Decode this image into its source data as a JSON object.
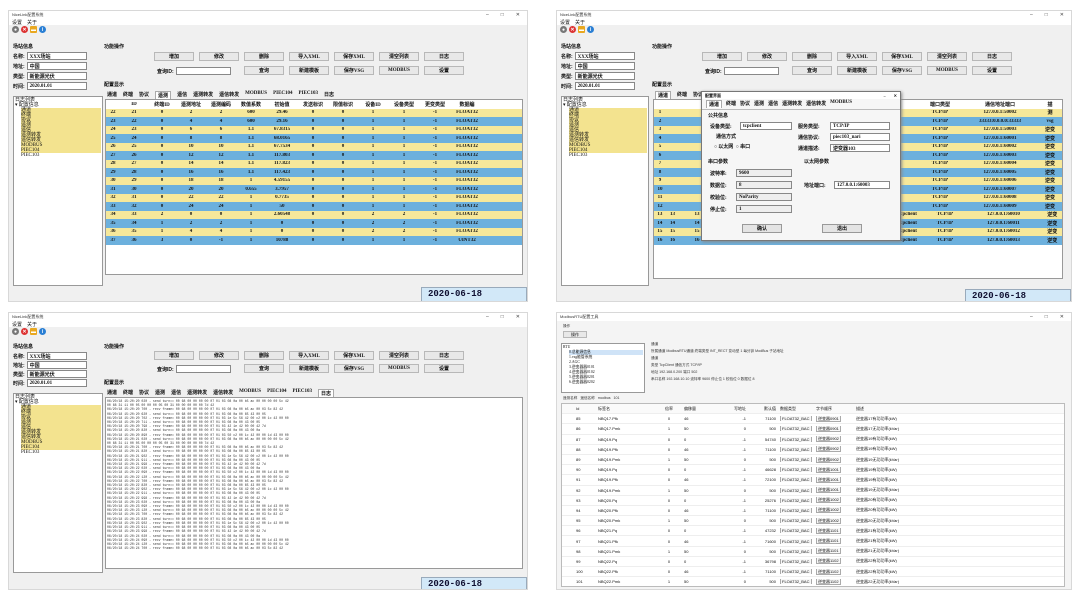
{
  "shared": {
    "window_title": "NiceLink配置系统",
    "menu": [
      "设置",
      "关于"
    ],
    "site_section": "场站信息",
    "fields": {
      "name_label": "名称:",
      "name_value": "XXX场站",
      "addr_label": "地址:",
      "addr_value": "中国",
      "type_label": "类型:",
      "type_value": "新能源光伏",
      "time_label": "时间:",
      "time_value": "2020.01.01"
    },
    "ops_section": "功能操作",
    "buttons_row1": [
      "增加",
      "修改",
      "删除",
      "导入XML",
      "保存XML",
      "清空列表",
      "日志"
    ],
    "query_label": "查询ID:",
    "buttons_row2": [
      "查询",
      "新建模板",
      "保存VSG",
      "MODBUS",
      "设置"
    ],
    "config_label": "配置显示",
    "tabs": [
      "通道",
      "终端",
      "协议",
      "遥测",
      "遥信",
      "遥测转发",
      "遥信转发",
      "MODBUS",
      "PIEC104",
      "PIEC103",
      "日志"
    ],
    "tree_title": "日志列表",
    "tree_root": "配置信息",
    "tree_items": [
      "通道",
      "终端",
      "协议",
      "遥测",
      "遥信",
      "遥测转发",
      "遥信转发",
      "MODBUS",
      "PIEC104",
      "PIEC103"
    ],
    "window_controls": [
      "–",
      "□",
      "✕"
    ],
    "icons": [
      "red-circle-icon",
      "close-icon",
      "folder-icon",
      "info-icon"
    ]
  },
  "win1": {
    "headers": [
      "",
      "ID",
      "终端ID",
      "遥测地址",
      "遥测编码",
      "数值系数",
      "初始值",
      "发送标识",
      "限值标识",
      "设备ID",
      "设备类型",
      "更变类型",
      "数据编"
    ],
    "rows": [
      [
        "22",
        "21",
        "0",
        "2",
        "2",
        "600",
        "29.46",
        "0",
        "0",
        "1",
        "1",
        "-1",
        "FLOAT32"
      ],
      [
        "23",
        "22",
        "0",
        "4",
        "4",
        "600",
        "29.16",
        "0",
        "0",
        "1",
        "1",
        "-1",
        "FLOAT32"
      ],
      [
        "24",
        "23",
        "0",
        "6",
        "6",
        "1.1",
        "67.8315",
        "0",
        "0",
        "1",
        "1",
        "-1",
        "FLOAT32"
      ],
      [
        "25",
        "24",
        "0",
        "8",
        "8",
        "1.1",
        "68.0165",
        "0",
        "0",
        "1",
        "1",
        "-1",
        "FLOAT32"
      ],
      [
        "26",
        "25",
        "0",
        "10",
        "10",
        "1.1",
        "67.7534",
        "0",
        "0",
        "1",
        "1",
        "-1",
        "FLOAT32"
      ],
      [
        "27",
        "26",
        "0",
        "12",
        "12",
        "1.1",
        "117.803",
        "0",
        "0",
        "1",
        "1",
        "-1",
        "FLOAT32"
      ],
      [
        "28",
        "27",
        "0",
        "14",
        "14",
        "1.1",
        "117.823",
        "0",
        "0",
        "1",
        "1",
        "-1",
        "FLOAT32"
      ],
      [
        "29",
        "28",
        "0",
        "16",
        "16",
        "1.1",
        "117.423",
        "0",
        "0",
        "1",
        "1",
        "-1",
        "FLOAT32"
      ],
      [
        "30",
        "29",
        "0",
        "18",
        "18",
        "1",
        "4.59155",
        "0",
        "0",
        "1",
        "1",
        "-1",
        "FLOAT32"
      ],
      [
        "31",
        "30",
        "0",
        "20",
        "20",
        "0.655",
        "3.7957",
        "0",
        "0",
        "1",
        "1",
        "-1",
        "FLOAT32"
      ],
      [
        "32",
        "31",
        "0",
        "22",
        "22",
        "1",
        "0.7735",
        "0",
        "0",
        "1",
        "1",
        "-1",
        "FLOAT32"
      ],
      [
        "33",
        "32",
        "0",
        "24",
        "24",
        "1",
        "50",
        "0",
        "0",
        "1",
        "1",
        "-1",
        "FLOAT32"
      ],
      [
        "34",
        "33",
        "2",
        "0",
        "0",
        "1",
        "2.60548",
        "0",
        "0",
        "2",
        "2",
        "-1",
        "FLOAT32"
      ],
      [
        "35",
        "34",
        "1",
        "2",
        "2",
        "1",
        "0",
        "0",
        "0",
        "2",
        "2",
        "-1",
        "FLOAT32"
      ],
      [
        "36",
        "35",
        "1",
        "4",
        "4",
        "1",
        "0",
        "0",
        "0",
        "2",
        "2",
        "-1",
        "FLOAT32"
      ],
      [
        "37",
        "36",
        "3",
        "0",
        "-1",
        "1",
        "10788",
        "0",
        "0",
        "1",
        "1",
        "-1",
        "UINT32"
      ]
    ],
    "status": "2020-06-18 14:52:20/周四"
  },
  "win2": {
    "dialog_title": "配置界面",
    "dialog_tabs": [
      "通道",
      "终端",
      "协议",
      "遥测",
      "遥信",
      "遥测转发",
      "遥信转发",
      "MODBUS"
    ],
    "common_info": "公共信息",
    "device_type_label": "设备类型:",
    "device_type_value": "tcpclient",
    "server_type_label": "服务类型:",
    "server_type_value": "TCP/IP",
    "comm_mode_label": "通信方式",
    "comm_opt1": "以太网",
    "comm_opt2": "串口",
    "proto_label": "通信协议:",
    "proto_value": "piec103_nari",
    "desc_label": "通道描述:",
    "desc_value": "逆变器103",
    "serial_section": "串口参数",
    "eth_section": "以太网参数",
    "baud_label": "波特率:",
    "baud_value": "9600",
    "data_label": "数据位:",
    "data_value": "8",
    "parity_label": "校验位:",
    "parity_value": "NoParity",
    "stop_label": "停止位:",
    "stop_value": "1",
    "addr_port_label": "地址端口:",
    "addr_port_value": "127.0.0.1:60003",
    "ok": "确认",
    "cancel": "退出",
    "right_headers": [
      "端口类型",
      "通信地址端口",
      "描"
    ],
    "right_rows": [
      [
        "TCP/IP",
        "127.0.0.1:50002",
        "测"
      ],
      [
        "TCP/IP",
        "33333:0.0.0.0:33333",
        "vsg"
      ],
      [
        "TCP/IP",
        "127.0.0.1:50003",
        "逆变"
      ],
      [
        "TCP/IP",
        "127.0.0.1:60001",
        "逆变"
      ],
      [
        "TCP/IP",
        "127.0.0.1:60002",
        "逆变"
      ],
      [
        "TCP/IP",
        "127.0.0.1:60003",
        "逆变"
      ],
      [
        "TCP/IP",
        "127.0.0.1:60004",
        "逆变"
      ],
      [
        "TCP/IP",
        "127.0.0.1:60005",
        "逆变"
      ],
      [
        "TCP/IP",
        "127.0.0.1:60006",
        "逆变"
      ],
      [
        "TCP/IP",
        "127.0.0.1:60007",
        "逆变"
      ],
      [
        "TCP/IP",
        "127.0.0.1:60008",
        "逆变"
      ],
      [
        "TCP/IP",
        "127.0.0.1:60009",
        "逆变"
      ],
      [
        "TCP/IP",
        "127.0.0.1:60010",
        "逆变"
      ],
      [
        "TCP/IP",
        "127.0.0.1:60011",
        "逆变"
      ],
      [
        "TCP/IP",
        "127.0.0.1:60012",
        "逆变"
      ],
      [
        "TCP/IP",
        "127.0.0.1:60013",
        "逆变"
      ]
    ],
    "left_rows": [
      [
        "13",
        "13",
        "1",
        "9600",
        "8",
        "1",
        "1",
        "tcpclient"
      ],
      [
        "14",
        "14",
        "1",
        "9600",
        "8",
        "1",
        "1",
        "tcpclient"
      ],
      [
        "15",
        "15",
        "1",
        "9600",
        "8",
        "1",
        "1",
        "tcpclient"
      ],
      [
        "16",
        "16",
        "1",
        "9600",
        "8",
        "1",
        "1",
        "tcpclient"
      ]
    ],
    "status": "2020-06-18 15:01:23/周四"
  },
  "win3": {
    "log_lines": [
      "06/20/18 15:20:20 020 - send turn== 00 68 00 00 00 00 07 01 03 08 0a 00 b5 ac 00 00 00 00 5c 42",
      "00 68 31 11 00 05 00 00 00 05 00 31 00 00 00 00 00 7d 42",
      "06/20/18 15:20:20 700 - recv frame= 00 68 00 00 00 00 07 01 03 08 0a 00 b5 ac 00 03 5c 82 42",
      "06/20/18 15:20:20 620 - send turn== 00 68 00 00 00 00 07 01 03 08 0a 00 65 43 00 05",
      "06/20/18 15:20:20 702 - recv frame= 00 68 00 00 00 00 07 01 03 1e 5c 56 42 00 c2 00 1c 42 00 00",
      "06/20/18 15:20:20 711 - send turn== 00 68 00 00 00 00 07 01 03 08 0a 00 43 00 05",
      "06/20/18 15:20:20 798 - recv frame= 00 68 00 00 00 00 07 01 03 42 1e 42 00 00 42 7d",
      "06/20/18 15:20:20 820 - send turn== 00 68 00 00 00 00 07 01 03 08 0a 00 43 00 0a",
      "06/20/18 15:20:20 890 - recv frame= 00 68 00 00 00 00 07 01 03 50 c2 00 1c 42 00 00 1d 43 00 00",
      "06/20/18 15:20:21 020 - send turn== 00 68 00 00 00 00 07 01 03 08 0a 00 b5 ac 00 00 00 00 5c 42",
      "00 68 31 11 00 05 00 00 00 05 00 31 00 00 00 00 00 7d 42",
      "06/20/18 15:20:21 700 - recv frame= 00 68 00 00 00 00 07 01 03 08 0a 00 b5 ac 00 03 5c 82 42",
      "06/20/18 15:20:21 820 - send turn== 00 68 00 00 00 00 07 01 03 08 0a 00 65 43 00 05",
      "06/20/18 15:20:21 902 - recv frame= 00 68 00 00 00 00 07 01 03 1e 5c 56 42 00 c2 00 1c 42 00 00",
      "06/20/18 15:20:21 911 - send turn== 00 68 00 00 00 00 07 01 03 08 0a 00 43 00 05",
      "06/20/18 15:20:21 998 - recv frame= 00 68 00 00 00 00 07 01 03 42 1e 42 00 00 42 7d",
      "06/20/18 15:20:22 020 - send turn== 00 68 00 00 00 00 07 01 03 08 0a 00 43 00 0a",
      "06/20/18 15:20:22 090 - recv frame= 00 68 00 00 00 00 07 01 03 50 c2 00 1c 42 00 00 1d 43 00 00",
      "06/20/18 15:20:22 120 - send turn== 00 68 00 00 00 00 07 01 03 08 0a 00 b5 ac 00 00 00 00 5c 42",
      "06/20/18 15:20:22 700 - recv frame= 00 68 00 00 00 00 07 01 03 08 0a 00 b5 ac 00 03 5c 82 42",
      "06/20/18 15:20:22 820 - send turn== 00 68 00 00 00 00 07 01 03 08 0a 00 65 43 00 05",
      "06/20/18 15:20:22 902 - recv frame= 00 68 00 00 00 00 07 01 03 1e 5c 56 42 00 c2 00 1c 42 00 00",
      "06/20/18 15:20:22 911 - send turn== 00 68 00 00 00 00 07 01 03 08 0a 00 43 00 05",
      "06/20/18 15:20:22 998 - recv frame= 00 68 00 00 00 00 07 01 03 42 1e 42 00 00 42 7d",
      "06/20/18 15:20:23 020 - send turn== 00 68 00 00 00 00 07 01 03 08 0a 00 43 00 0a",
      "06/20/18 15:20:23 090 - recv frame= 00 68 00 00 00 00 07 01 03 50 c2 00 1c 42 00 00 1d 43 00 00",
      "06/20/18 15:20:23 120 - send turn== 00 68 00 00 00 00 07 01 03 08 0a 00 b5 ac 00 00 00 00 5c 42",
      "06/20/18 15:20:23 700 - recv frame= 00 68 00 00 00 00 07 01 03 08 0a 00 b5 ac 00 03 5c 82 42",
      "06/20/18 15:20:23 820 - send turn== 00 68 00 00 00 00 07 01 03 08 0a 00 65 43 00 05",
      "06/20/18 15:20:23 902 - recv frame= 00 68 00 00 00 00 07 01 03 1e 5c 56 42 00 c2 00 1c 42 00 00",
      "06/20/18 15:20:23 911 - send turn== 00 68 00 00 00 00 07 01 03 08 0a 00 43 00 05",
      "06/20/18 15:20:23 998 - recv frame= 00 68 00 00 00 00 07 01 03 42 1e 42 00 00 42 7d",
      "06/20/18 15:20:24 020 - send turn== 00 68 00 00 00 00 07 01 03 08 0a 00 43 00 0a",
      "06/20/18 15:20:24 090 - recv frame= 00 68 00 00 00 00 07 01 03 50 c2 00 1c 42 00 00 1d 43 00 00",
      "06/20/18 15:20:24 120 - send turn== 00 68 00 00 00 00 07 01 03 08 0a 00 b5 ac 00 00 00 00 5c 42",
      "06/20/18 15:20:24 700 - recv frame= 00 68 00 00 00 00 07 01 03 08 0a 00 b5 ac 00 03 5c 82 42"
    ],
    "status": "2020-06-18 15:00:02/周四"
  },
  "win4": {
    "title": "ModbusRTU配置工具",
    "menu": "操作",
    "tree_root": "RTU",
    "tree_items": [
      "0.总能源信息",
      "1.vsg能管系统",
      "2.AGC",
      "3.逆变器器0101",
      "4.逆变器器0102",
      "5.逆变器器0201",
      "6.逆变器器0202"
    ],
    "channel_label": "通道",
    "settings": [
      "所属通道  ModbusRTU通道    终端类型  INT_RECT  变动型  1  每分钟  ModBus  子站地址",
      "通道",
      "类型  TcpClient  通信方式  TCP/IP",
      "地址  192.168.0.200    端口  502",
      "串口名称  192.168.10.10    波特率  9600  停止位  1  校验位  0  数据位  8"
    ],
    "tabs": [
      "遥测名称",
      "遥信名称",
      "modbus",
      "101"
    ],
    "headers": [
      "Id",
      "标签名",
      "倍率",
      "偏移量",
      "写地址",
      "默认值",
      "数据类型",
      "字节顺序",
      "描述"
    ],
    "rows": [
      [
        "85",
        "NBQ17.Pfk",
        "0",
        "46",
        "-1",
        "71100",
        "FLOAT32_BAC",
        "逆变器0901",
        "逆变器17有功功率(kW)"
      ],
      [
        "86",
        "NBQ17.Pmk",
        "1",
        "50",
        "0",
        "500",
        "FLOAT32_BAC",
        "逆变器0901",
        "逆变器17无功功率(kVar)"
      ],
      [
        "87",
        "NBQ19.Pq",
        "0",
        "0",
        "-1",
        "54740",
        "FLOAT32_BAC",
        "逆变器0902",
        "逆变器19有功功率(kW)"
      ],
      [
        "88",
        "NBQ19.Pfk",
        "0",
        "46",
        "-1",
        "71100",
        "FLOAT32_BAC",
        "逆变器0902",
        "逆变器19有功功率(kW)"
      ],
      [
        "89",
        "NBQ19.Pmk",
        "1",
        "50",
        "0",
        "500",
        "FLOAT32_BAC",
        "逆变器0902",
        "逆变器19无功功率(kVar)"
      ],
      [
        "90",
        "NBQ19.Pq",
        "0",
        "0",
        "-1",
        "46628",
        "FLOAT32_BAC",
        "逆变器1001",
        "逆变器19有功功率(kW)"
      ],
      [
        "91",
        "NBQ19.Pfk",
        "0",
        "46",
        "-1",
        "72100",
        "FLOAT32_BAC",
        "逆变器1001",
        "逆变器19有功功率(kW)"
      ],
      [
        "92",
        "NBQ19.Pmk",
        "1",
        "50",
        "0",
        "500",
        "FLOAT32_BAC",
        "逆变器1001",
        "逆变器19无功功率(kVar)"
      ],
      [
        "93",
        "NBQ20.Pq",
        "0",
        "0",
        "-1",
        "25276",
        "FLOAT32_BAC",
        "逆变器1002",
        "逆变器20有功功率(kW)"
      ],
      [
        "94",
        "NBQ20.Pfk",
        "0",
        "46",
        "-1",
        "71100",
        "FLOAT32_BAC",
        "逆变器1002",
        "逆变器20有功功率(kW)"
      ],
      [
        "95",
        "NBQ20.Pmk",
        "1",
        "50",
        "0",
        "500",
        "FLOAT32_BAC",
        "逆变器1002",
        "逆变器20无功功率(kVar)"
      ],
      [
        "96",
        "NBQ21.Pq",
        "0",
        "0",
        "-1",
        "47232",
        "FLOAT32_BAC",
        "逆变器1101",
        "逆变器21有功功率(kW)"
      ],
      [
        "97",
        "NBQ21.Pfk",
        "0",
        "46",
        "-1",
        "71600",
        "FLOAT32_BAC",
        "逆变器1101",
        "逆变器21有功功率(kW)"
      ],
      [
        "98",
        "NBQ21.Pmk",
        "1",
        "50",
        "0",
        "500",
        "FLOAT32_BAC",
        "逆变器1101",
        "逆变器21无功功率(kVar)"
      ],
      [
        "99",
        "NBQ22.Pq",
        "0",
        "0",
        "-1",
        "36798",
        "FLOAT32_BAC",
        "逆变器1102",
        "逆变器22有功功率(kW)"
      ],
      [
        "100",
        "NBQ22.Pfk",
        "0",
        "46",
        "-1",
        "71100",
        "FLOAT32_BAC",
        "逆变器1102",
        "逆变器22有功功率(kW)"
      ],
      [
        "101",
        "NBQ22.Pmk",
        "1",
        "50",
        "0",
        "500",
        "FLOAT32_BAC",
        "逆变器1102",
        "逆变器22无功功率(kVar)"
      ]
    ]
  }
}
